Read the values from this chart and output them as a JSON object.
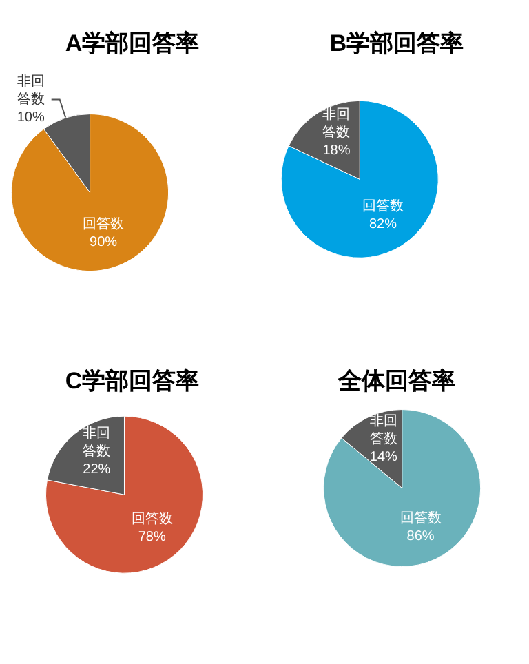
{
  "chart_data": [
    {
      "type": "pie",
      "title": "A学部回答率",
      "categories": [
        "回答数",
        "非回答数"
      ],
      "values": [
        90,
        10
      ],
      "colors": [
        "#d98416",
        "#595959"
      ],
      "value_labels": [
        "90%",
        "10%"
      ]
    },
    {
      "type": "pie",
      "title": "B学部回答率",
      "categories": [
        "回答数",
        "非回答数"
      ],
      "values": [
        82,
        18
      ],
      "colors": [
        "#00a2e3",
        "#595959"
      ],
      "value_labels": [
        "82%",
        "18%"
      ]
    },
    {
      "type": "pie",
      "title": "C学部回答率",
      "categories": [
        "回答数",
        "非回答数"
      ],
      "values": [
        78,
        22
      ],
      "colors": [
        "#d0553a",
        "#595959"
      ],
      "value_labels": [
        "78%",
        "22%"
      ]
    },
    {
      "type": "pie",
      "title": "全体回答率",
      "categories": [
        "回答数",
        "非回答数"
      ],
      "values": [
        86,
        14
      ],
      "colors": [
        "#6ab2bb",
        "#595959"
      ],
      "value_labels": [
        "86%",
        "14%"
      ]
    }
  ]
}
